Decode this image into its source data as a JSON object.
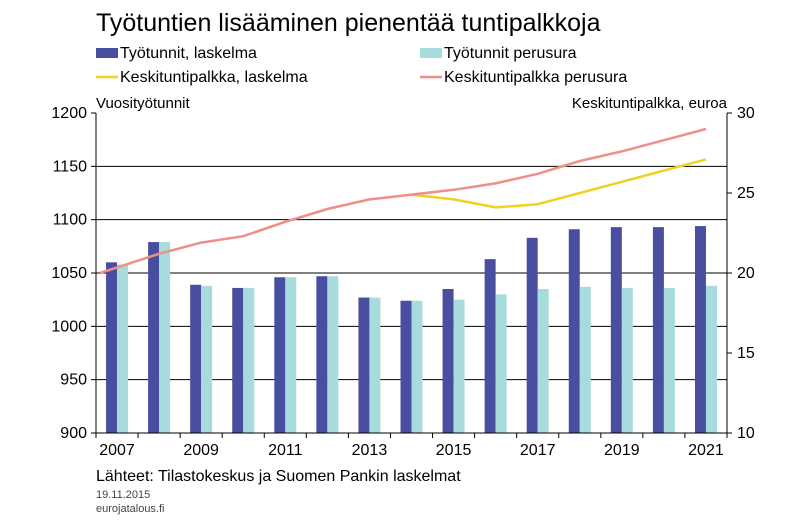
{
  "chart_data": {
    "type": "bar",
    "title": "Työtuntien lisääminen pienentää tuntipalkkoja",
    "categories": [
      "2007",
      "2008",
      "2009",
      "2010",
      "2011",
      "2012",
      "2013",
      "2014",
      "2015",
      "2016",
      "2017",
      "2018",
      "2019",
      "2020",
      "2021"
    ],
    "x_tick_labels": [
      "2007",
      "2009",
      "2011",
      "2013",
      "2015",
      "2017",
      "2019",
      "2021"
    ],
    "left_axis": {
      "label": "Vuosityötunnit",
      "ylim": [
        900,
        1200
      ],
      "ticks": [
        "1200",
        "1150",
        "1100",
        "1050",
        "1000",
        "950",
        "900"
      ]
    },
    "right_axis": {
      "label": "Keskituntipalkka, euroa",
      "ylim": [
        10,
        30
      ],
      "ticks": [
        "30",
        "25",
        "20",
        "15",
        "10"
      ]
    },
    "series": [
      {
        "name": "Työtunnit, laskelma",
        "kind": "bar",
        "axis": "left",
        "color": "#4a4ea0",
        "values": [
          1060,
          1079,
          1039,
          1036,
          1046,
          1047,
          1027,
          1024,
          1035,
          1063,
          1083,
          1091,
          1093,
          1093,
          1094
        ]
      },
      {
        "name": "Työtunnit perusura",
        "kind": "bar",
        "axis": "left",
        "color": "#a8dbdb",
        "values": [
          1058,
          1079,
          1038,
          1036,
          1046,
          1047,
          1027,
          1024,
          1025,
          1030,
          1035,
          1037,
          1036,
          1036,
          1038
        ]
      },
      {
        "name": "Keskituntipalkka, laskelma",
        "kind": "line",
        "axis": "right",
        "color": "#f0d21e",
        "values": [
          null,
          null,
          null,
          null,
          null,
          null,
          null,
          24.9,
          24.6,
          24.1,
          24.3,
          25.0,
          25.7,
          26.4,
          27.1
        ]
      },
      {
        "name": "Keskituntipalkka perusura",
        "kind": "line",
        "axis": "right",
        "color": "#ee8f88",
        "values": [
          20.0,
          21.2,
          21.9,
          22.3,
          23.2,
          24.0,
          24.6,
          24.9,
          25.2,
          25.6,
          26.2,
          27.0,
          27.6,
          28.3,
          29.0
        ]
      }
    ],
    "grid": "horizontal"
  },
  "legend": [
    {
      "label": "Työtunnit, laskelma",
      "kind": "bar",
      "color": "#4a4ea0"
    },
    {
      "label": "Työtunnit perusura",
      "kind": "bar",
      "color": "#a8dbdb"
    },
    {
      "label": "Keskituntipalkka, laskelma",
      "kind": "line",
      "color": "#f0d21e"
    },
    {
      "label": "Keskituntipalkka perusura",
      "kind": "line",
      "color": "#ee8f88"
    }
  ],
  "footer": {
    "source": "Lähteet: Tilastokeskus ja Suomen Pankin laskelmat",
    "date": "19.11.2015",
    "site": "eurojatalous.fi"
  }
}
